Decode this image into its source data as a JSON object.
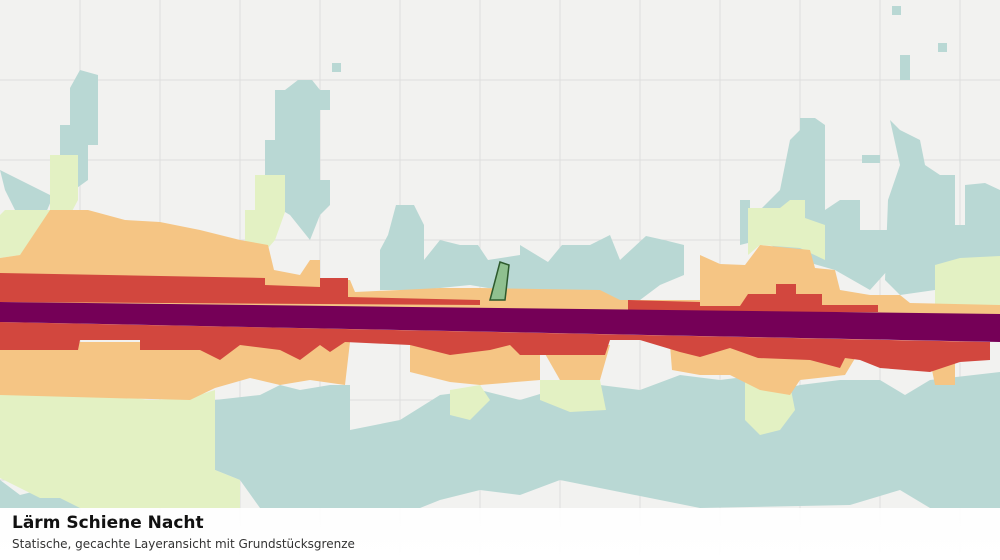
{
  "caption": {
    "title": "Lärm Schiene Nacht",
    "subtitle": "Statische, gecachte Layeransicht mit Grundstücksgrenze"
  }
}
